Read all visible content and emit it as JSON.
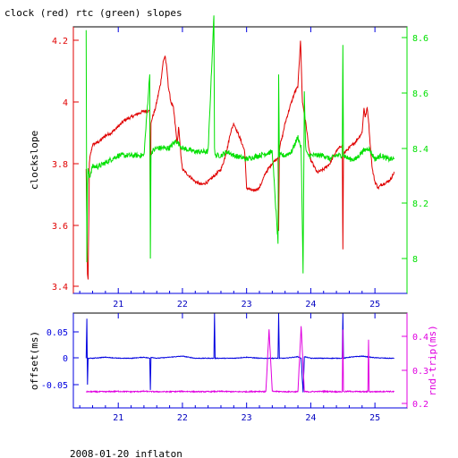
{
  "title": "clock (red) rtc (green) slopes",
  "footer": "2008-01-20 inflaton",
  "chart_data": [
    {
      "type": "line",
      "panel": "top",
      "x_ticks": [
        "21",
        "22",
        "23",
        "24",
        "25"
      ],
      "xlim": [
        20.3,
        25.5
      ],
      "left_axis": {
        "label": "clockslope",
        "ylim": [
          3.37,
          4.3
        ],
        "ticks": [
          "3.4",
          "3.6",
          "3.8",
          "4",
          "4.2"
        ],
        "color": "#e00000"
      },
      "right_axis": {
        "label": "",
        "ylim": [
          7.86,
          8.68
        ],
        "ticks": [
          "8",
          "8.2",
          "8.4",
          "8.6",
          "8.6"
        ],
        "color": "#00e000"
      },
      "series": [
        {
          "color": "#e00000",
          "axis": "left",
          "noise": 0.006,
          "x": [
            20.5,
            20.52,
            20.53,
            20.55,
            20.56,
            20.58,
            20.6,
            20.7,
            20.8,
            20.9,
            21.0,
            21.1,
            21.2,
            21.3,
            21.4,
            21.49,
            21.5,
            21.51,
            21.52,
            21.55,
            21.58,
            21.62,
            21.66,
            21.7,
            21.73,
            21.76,
            21.78,
            21.82,
            21.86,
            21.92,
            21.94,
            21.97,
            22.0,
            22.1,
            22.2,
            22.3,
            22.4,
            22.5,
            22.6,
            22.65,
            22.7,
            22.75,
            22.8,
            22.9,
            22.97,
            23.0,
            23.1,
            23.2,
            23.3,
            23.4,
            23.49,
            23.5,
            23.51,
            23.52,
            23.55,
            23.6,
            23.7,
            23.75,
            23.8,
            23.84,
            23.87,
            23.9,
            23.93,
            23.97,
            24.0,
            24.05,
            24.1,
            24.2,
            24.3,
            24.4,
            24.49,
            24.5,
            24.51,
            24.55,
            24.6,
            24.7,
            24.8,
            24.83,
            24.85,
            24.88,
            24.9,
            24.93,
            24.96,
            25.0,
            25.05,
            25.1,
            25.2,
            25.25,
            25.3
          ],
          "values": [
            3.78,
            3.44,
            3.42,
            3.8,
            3.82,
            3.84,
            3.86,
            3.87,
            3.89,
            3.9,
            3.92,
            3.94,
            3.95,
            3.96,
            3.97,
            3.97,
            3.64,
            3.93,
            3.94,
            3.96,
            3.98,
            4.02,
            4.06,
            4.13,
            4.15,
            4.1,
            4.05,
            4.0,
            3.98,
            3.86,
            3.92,
            3.84,
            3.78,
            3.76,
            3.74,
            3.73,
            3.74,
            3.76,
            3.78,
            3.81,
            3.85,
            3.9,
            3.93,
            3.88,
            3.84,
            3.72,
            3.71,
            3.72,
            3.77,
            3.8,
            3.82,
            3.58,
            3.84,
            3.86,
            3.88,
            3.93,
            4.0,
            4.03,
            4.05,
            4.2,
            4.0,
            3.96,
            3.92,
            3.85,
            3.81,
            3.79,
            3.77,
            3.78,
            3.8,
            3.84,
            3.86,
            3.52,
            3.83,
            3.84,
            3.85,
            3.87,
            3.9,
            3.98,
            3.95,
            3.98,
            3.94,
            3.85,
            3.78,
            3.74,
            3.72,
            3.73,
            3.74,
            3.75,
            3.77
          ]
        },
        {
          "color": "#00e000",
          "axis": "right",
          "noise": 0.012,
          "x": [
            20.5,
            20.51,
            20.52,
            20.53,
            20.55,
            20.6,
            20.7,
            20.8,
            20.9,
            21.0,
            21.2,
            21.4,
            21.49,
            21.5,
            21.51,
            21.52,
            21.6,
            21.7,
            21.8,
            21.9,
            22.0,
            22.2,
            22.4,
            22.49,
            22.5,
            22.51,
            22.6,
            22.7,
            22.8,
            23.0,
            23.2,
            23.4,
            23.49,
            23.5,
            23.51,
            23.6,
            23.7,
            23.8,
            23.85,
            23.88,
            23.9,
            23.92,
            23.95,
            24.0,
            24.1,
            24.2,
            24.3,
            24.4,
            24.49,
            24.5,
            24.51,
            24.6,
            24.7,
            24.8,
            24.9,
            25.0,
            25.1,
            25.2,
            25.3
          ],
          "values": [
            8.62,
            7.99,
            8.2,
            8.24,
            8.22,
            8.25,
            8.25,
            8.26,
            8.27,
            8.28,
            8.28,
            8.28,
            8.5,
            8.0,
            8.28,
            8.29,
            8.3,
            8.3,
            8.3,
            8.32,
            8.3,
            8.29,
            8.29,
            8.66,
            8.3,
            8.28,
            8.28,
            8.29,
            8.28,
            8.27,
            8.28,
            8.29,
            8.04,
            8.5,
            8.28,
            8.28,
            8.29,
            8.33,
            8.3,
            7.96,
            8.45,
            8.3,
            8.28,
            8.28,
            8.28,
            8.28,
            8.27,
            8.28,
            8.28,
            8.58,
            8.28,
            8.27,
            8.27,
            8.29,
            8.3,
            8.27,
            8.28,
            8.27,
            8.27
          ]
        }
      ]
    },
    {
      "type": "line",
      "panel": "bottom",
      "x_ticks": [
        "21",
        "22",
        "23",
        "24",
        "25"
      ],
      "xlim": [
        20.3,
        25.5
      ],
      "left_axis": {
        "label": "offset(ms)",
        "ylim": [
          -0.093,
          0.093
        ],
        "ticks": [
          "0.05",
          "0",
          "-0.05"
        ],
        "color": "#0000e0"
      },
      "right_axis": {
        "label": "rnd-trip(ms)",
        "ylim": [
          0.2,
          0.47
        ],
        "ticks": [
          "0.4",
          "0.3",
          "0.2"
        ],
        "color": "#e000e0"
      },
      "series": [
        {
          "color": "#0000e0",
          "axis": "left",
          "noise": 0.006,
          "x": [
            20.5,
            20.51,
            20.52,
            20.53,
            20.6,
            20.8,
            21.0,
            21.2,
            21.4,
            21.49,
            21.5,
            21.51,
            21.6,
            21.8,
            22.0,
            22.2,
            22.4,
            22.49,
            22.5,
            22.51,
            22.6,
            22.8,
            23.0,
            23.2,
            23.4,
            23.49,
            23.5,
            23.51,
            23.6,
            23.8,
            23.85,
            23.88,
            23.9,
            24.0,
            24.2,
            24.4,
            24.49,
            24.5,
            24.51,
            24.6,
            24.8,
            25.0,
            25.2,
            25.3
          ],
          "values": [
            0.0,
            0.075,
            -0.05,
            0.0,
            0.0,
            0.002,
            0.0,
            0.0,
            0.002,
            0.0,
            -0.06,
            0.002,
            0.0,
            0.002,
            0.004,
            0.0,
            0.0,
            0.0,
            0.085,
            0.0,
            0.0,
            0.0,
            0.002,
            0.0,
            0.0,
            0.0,
            0.085,
            0.0,
            0.0,
            0.003,
            0.0,
            -0.065,
            0.003,
            0.0,
            0.0,
            0.0,
            0.0,
            0.085,
            0.0,
            0.002,
            0.004,
            0.001,
            0.0,
            0.0
          ]
        },
        {
          "color": "#e000e0",
          "axis": "right",
          "noise": 0.008,
          "x": [
            20.5,
            20.6,
            20.8,
            21.0,
            21.2,
            21.4,
            21.6,
            21.8,
            22.0,
            22.2,
            22.4,
            22.6,
            22.8,
            23.0,
            23.2,
            23.3,
            23.35,
            23.4,
            23.6,
            23.8,
            23.85,
            23.9,
            24.0,
            24.2,
            24.4,
            24.49,
            24.5,
            24.51,
            24.6,
            24.8,
            24.89,
            24.9,
            24.91,
            25.0,
            25.2,
            25.3
          ],
          "values": [
            0.235,
            0.235,
            0.235,
            0.236,
            0.235,
            0.236,
            0.235,
            0.235,
            0.236,
            0.235,
            0.235,
            0.236,
            0.235,
            0.235,
            0.236,
            0.235,
            0.42,
            0.236,
            0.235,
            0.235,
            0.43,
            0.235,
            0.235,
            0.236,
            0.235,
            0.235,
            0.42,
            0.235,
            0.236,
            0.235,
            0.235,
            0.39,
            0.235,
            0.235,
            0.236,
            0.235
          ]
        }
      ]
    }
  ]
}
